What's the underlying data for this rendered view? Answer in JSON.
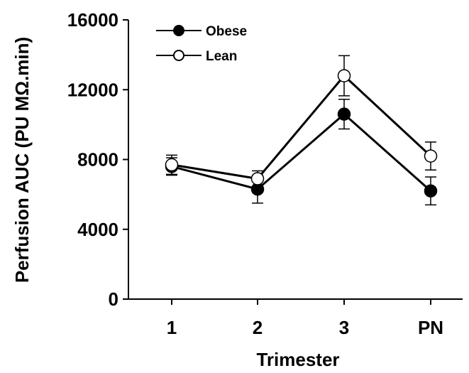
{
  "chart_data": {
    "type": "line",
    "xlabel": "Trimester",
    "ylabel": "Perfusion AUC (PU MΩ.min)",
    "categories": [
      "1",
      "2",
      "3",
      "PN"
    ],
    "ylim": [
      0,
      16000
    ],
    "yticks": [
      0,
      4000,
      8000,
      12000,
      16000
    ],
    "ytick_labels": [
      "0",
      "4000",
      "8000",
      "12000",
      "16000"
    ],
    "legend_position": "top-left",
    "grid": false,
    "series": [
      {
        "name": "Obese",
        "marker": "filled-circle",
        "color": "#000000",
        "values": [
          7600,
          6300,
          10600,
          6200
        ],
        "errors": [
          500,
          800,
          850,
          800
        ]
      },
      {
        "name": "Lean",
        "marker": "open-circle",
        "color": "#000000",
        "values": [
          7700,
          6900,
          12800,
          8200
        ],
        "errors": [
          550,
          450,
          1150,
          800
        ]
      }
    ]
  }
}
